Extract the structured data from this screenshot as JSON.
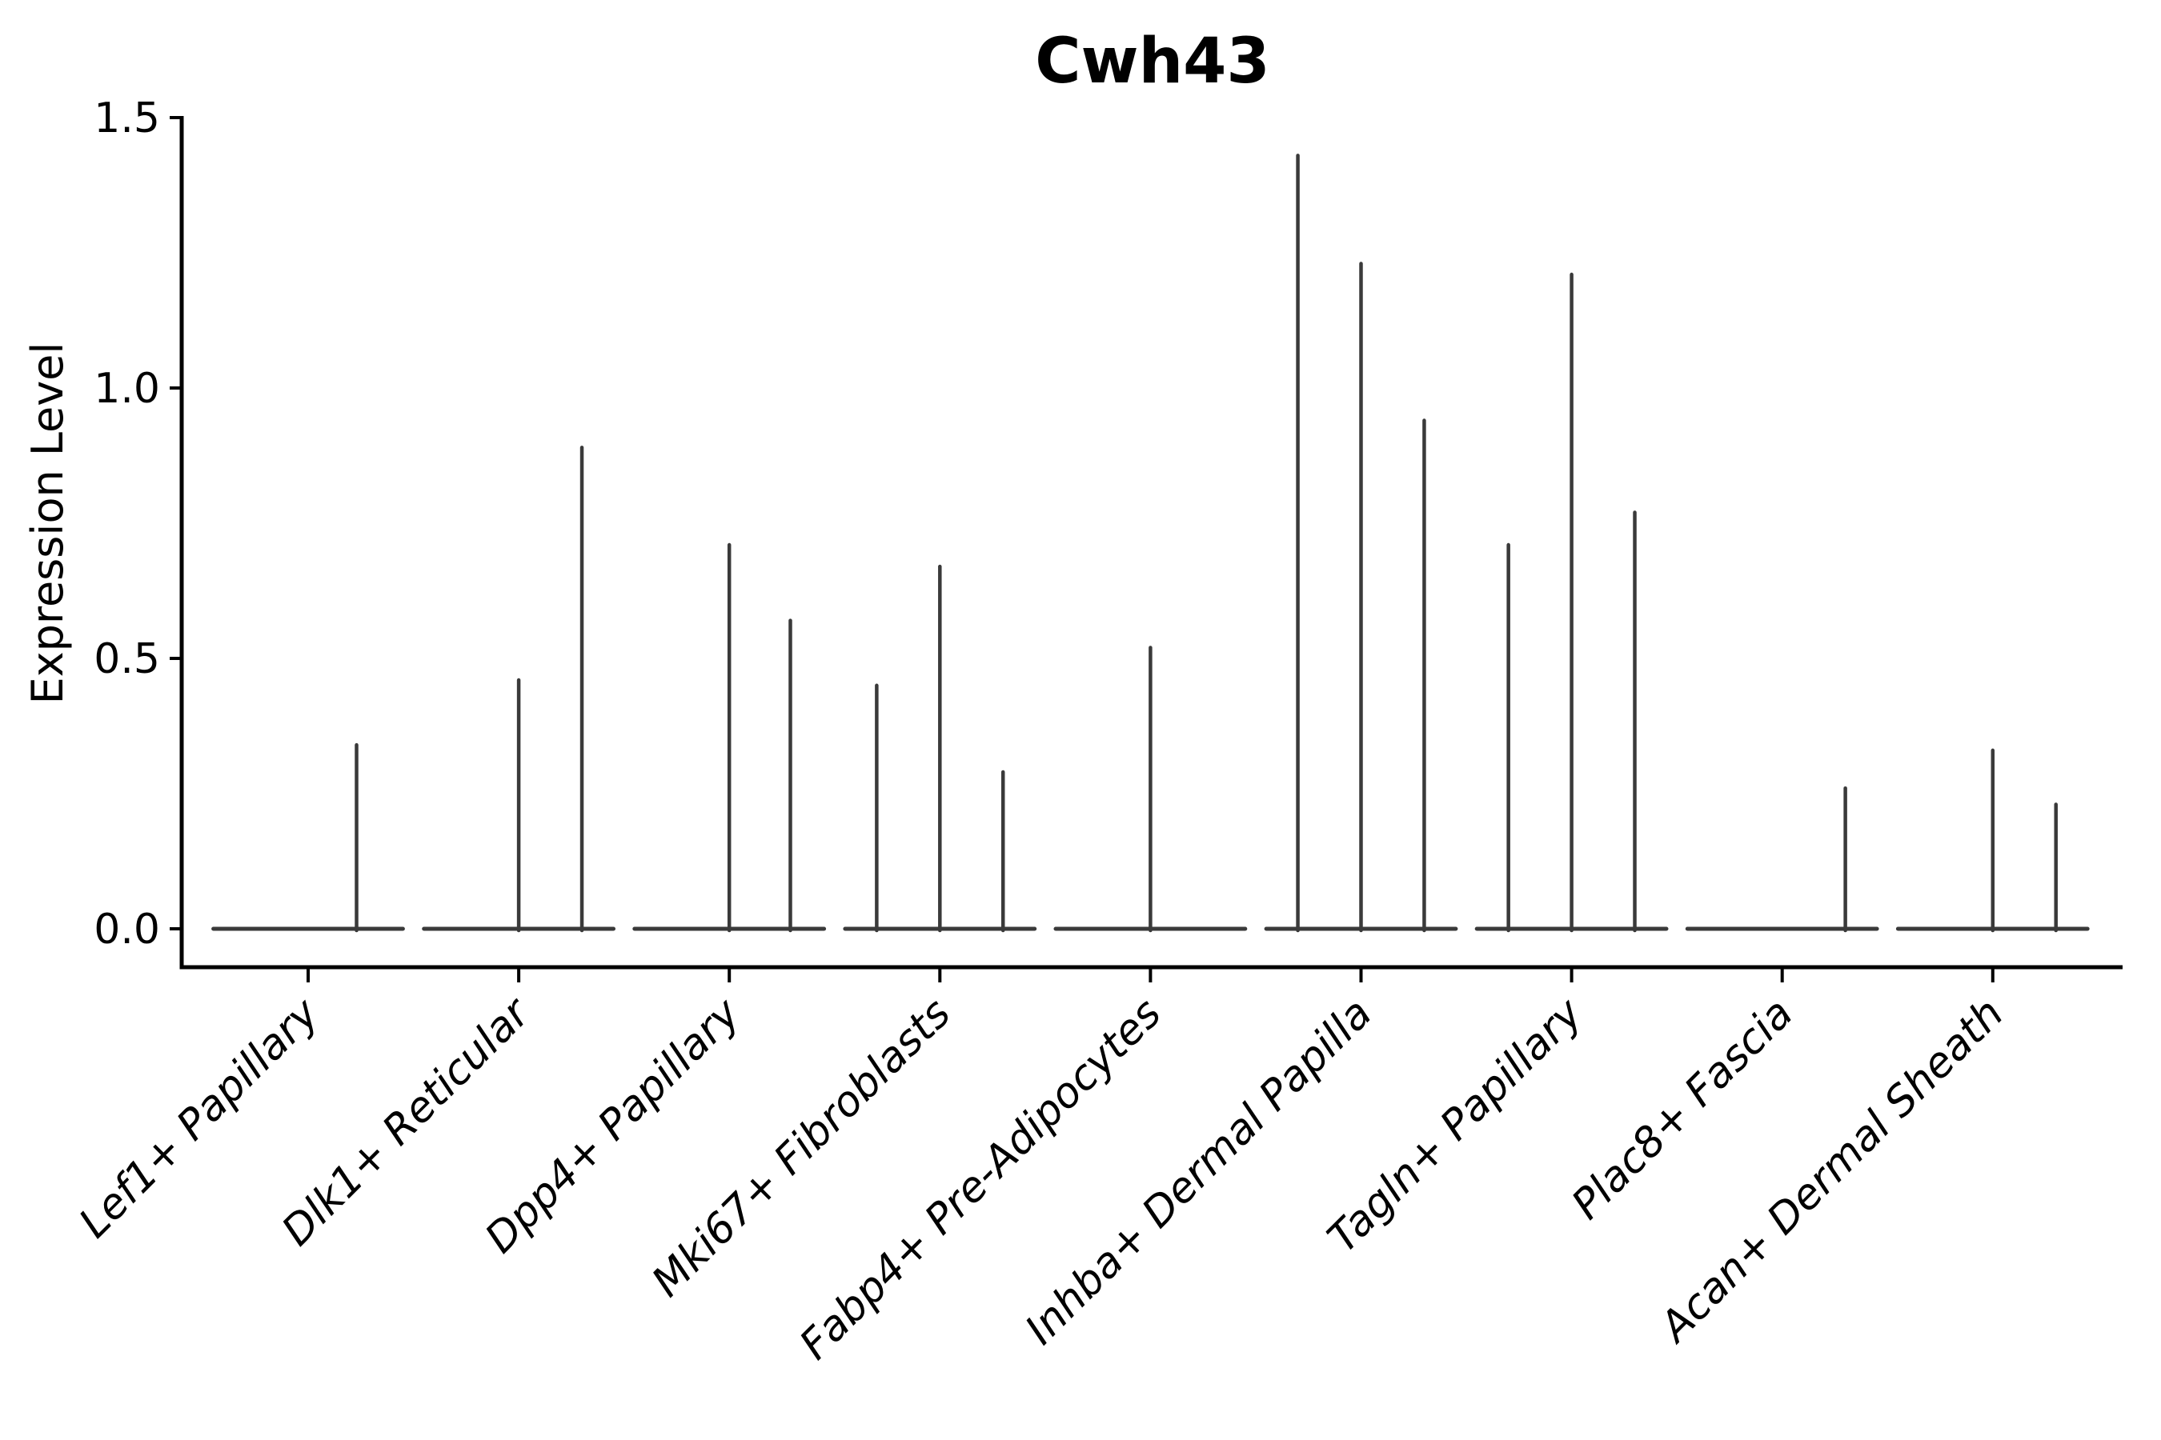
{
  "chart_data": {
    "type": "violin",
    "title": "Cwh43",
    "ylabel": "Expression Level",
    "xlabel": "",
    "ylim": [
      -0.07,
      1.5
    ],
    "yticks": [
      0.0,
      0.5,
      1.0,
      1.5
    ],
    "yticklabels": [
      "0.0",
      "0.5",
      "1.0",
      "1.5"
    ],
    "grid": false,
    "legend": "none",
    "x_tick_rotation_deg": 45,
    "violin_half_width_frac": 0.45,
    "groups": [
      {
        "category": "Lef1+ Papillary",
        "spikes": [
          {
            "pos": 0.23,
            "value": 0.34
          }
        ]
      },
      {
        "category": "Dlk1+ Reticular",
        "spikes": [
          {
            "pos": 0.0,
            "value": 0.46
          },
          {
            "pos": 0.3,
            "value": 0.89
          }
        ]
      },
      {
        "category": "Dpp4+ Papillary",
        "spikes": [
          {
            "pos": 0.0,
            "value": 0.71
          },
          {
            "pos": 0.29,
            "value": 0.57
          }
        ]
      },
      {
        "category": "Mki67+ Fibroblasts",
        "spikes": [
          {
            "pos": -0.3,
            "value": 0.45
          },
          {
            "pos": 0.0,
            "value": 0.67
          },
          {
            "pos": 0.3,
            "value": 0.29
          }
        ]
      },
      {
        "category": "Fabp4+ Pre-Adipocytes",
        "spikes": [
          {
            "pos": 0.0,
            "value": 0.52
          }
        ]
      },
      {
        "category": "Inhba+ Dermal Papilla",
        "spikes": [
          {
            "pos": -0.3,
            "value": 1.43
          },
          {
            "pos": 0.0,
            "value": 1.23
          },
          {
            "pos": 0.3,
            "value": 0.94
          }
        ]
      },
      {
        "category": "Tagln+ Papillary",
        "spikes": [
          {
            "pos": -0.3,
            "value": 0.71
          },
          {
            "pos": 0.0,
            "value": 1.21
          },
          {
            "pos": 0.3,
            "value": 0.77
          }
        ]
      },
      {
        "category": "Plac8+ Fascia",
        "spikes": [
          {
            "pos": 0.3,
            "value": 0.26
          }
        ]
      },
      {
        "category": "Acan+ Dermal Sheath",
        "spikes": [
          {
            "pos": 0.0,
            "value": 0.33
          },
          {
            "pos": 0.3,
            "value": 0.23
          }
        ]
      }
    ],
    "colors": {
      "violin_line": "#3a3a3a",
      "axis_line": "#000000",
      "text": "#000000",
      "background": "#ffffff"
    }
  }
}
